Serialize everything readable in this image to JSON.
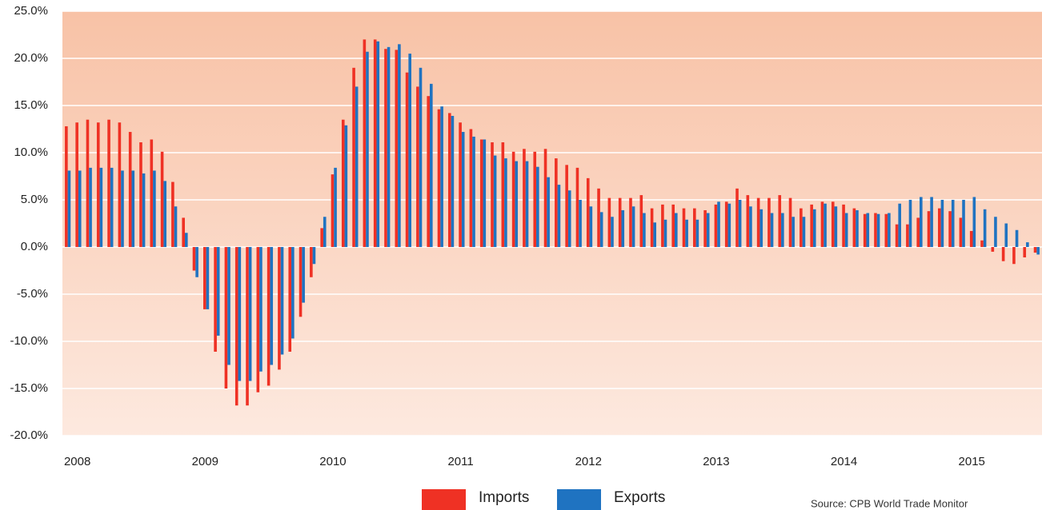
{
  "chart_data": {
    "type": "bar",
    "categories": [
      "2008",
      null,
      null,
      null,
      null,
      null,
      null,
      null,
      null,
      null,
      null,
      null,
      "2009",
      null,
      null,
      null,
      null,
      null,
      null,
      null,
      null,
      null,
      null,
      null,
      "2010",
      null,
      null,
      null,
      null,
      null,
      null,
      null,
      null,
      null,
      null,
      null,
      "2011",
      null,
      null,
      null,
      null,
      null,
      null,
      null,
      null,
      null,
      null,
      null,
      "2012",
      null,
      null,
      null,
      null,
      null,
      null,
      null,
      null,
      null,
      null,
      null,
      "2013",
      null,
      null,
      null,
      null,
      null,
      null,
      null,
      null,
      null,
      null,
      null,
      "2014",
      null,
      null,
      null,
      null,
      null,
      null,
      null,
      null,
      null,
      null,
      null,
      "2015",
      null,
      null,
      null,
      null,
      null,
      null,
      null
    ],
    "series": [
      {
        "name": "Imports",
        "color": "#ef3124",
        "values": [
          12.8,
          13.2,
          13.5,
          13.2,
          13.5,
          13.2,
          12.2,
          11.1,
          11.4,
          10.1,
          6.9,
          3.1,
          -2.5,
          -6.6,
          -11.1,
          -15.0,
          -16.8,
          -16.8,
          -15.4,
          -14.7,
          -13.0,
          -11.1,
          -7.4,
          -3.2,
          2.0,
          7.7,
          13.5,
          19.0,
          22.0,
          22.0,
          21.0,
          20.9,
          18.5,
          17.0,
          16.0,
          14.6,
          14.2,
          13.2,
          12.5,
          11.4,
          11.1,
          11.1,
          10.1,
          10.4,
          10.1,
          10.4,
          9.4,
          8.7,
          8.4,
          7.3,
          6.2,
          5.2,
          5.2,
          5.2,
          5.5,
          4.1,
          4.5,
          4.5,
          4.1,
          4.1,
          3.9,
          4.5,
          4.8,
          6.2,
          5.5,
          5.2,
          5.2,
          5.5,
          5.2,
          4.1,
          4.5,
          4.8,
          4.8,
          4.5,
          4.1,
          3.5,
          3.6,
          3.5,
          2.4,
          2.4,
          3.1,
          3.8,
          4.1,
          3.8,
          3.1,
          1.7,
          0.7,
          -0.5,
          -1.5,
          -1.8,
          -1.1,
          -0.6
        ]
      },
      {
        "name": "Exports",
        "color": "#1f73c1",
        "values": [
          8.1,
          8.1,
          8.4,
          8.4,
          8.4,
          8.1,
          8.1,
          7.8,
          8.1,
          7.0,
          4.3,
          1.5,
          -3.2,
          -6.6,
          -9.4,
          -12.5,
          -14.2,
          -14.2,
          -13.2,
          -12.5,
          -11.4,
          -9.7,
          -5.9,
          -1.8,
          3.2,
          8.4,
          12.9,
          17.0,
          20.7,
          21.8,
          21.2,
          21.5,
          20.5,
          19.0,
          17.3,
          14.9,
          13.9,
          12.2,
          11.7,
          11.4,
          9.7,
          9.4,
          9.1,
          9.1,
          8.5,
          7.4,
          6.6,
          6.0,
          5.0,
          4.3,
          3.7,
          3.2,
          3.9,
          4.3,
          3.6,
          2.6,
          2.9,
          3.6,
          2.9,
          2.9,
          3.6,
          4.8,
          4.6,
          5.0,
          4.3,
          4.0,
          3.6,
          3.6,
          3.2,
          3.2,
          4.0,
          4.6,
          4.3,
          3.6,
          3.9,
          3.6,
          3.5,
          3.6,
          4.6,
          5.0,
          5.3,
          5.3,
          5.0,
          5.0,
          5.0,
          5.3,
          4.0,
          3.2,
          2.5,
          1.8,
          0.5,
          -0.8
        ]
      }
    ],
    "ylim": [
      -20,
      25
    ],
    "yticks": [
      {
        "value": -20,
        "label": "-20.0%"
      },
      {
        "value": -15,
        "label": "-15.0%"
      },
      {
        "value": -10,
        "label": "-10.0%"
      },
      {
        "value": -5,
        "label": "-5.0%"
      },
      {
        "value": 0,
        "label": "0.0%"
      },
      {
        "value": 5,
        "label": "5.0%"
      },
      {
        "value": 10,
        "label": "10.0%"
      },
      {
        "value": 15,
        "label": "15.0%"
      },
      {
        "value": 20,
        "label": "20.0%"
      },
      {
        "value": 25,
        "label": "25.0%"
      }
    ],
    "grid": true,
    "legend": "bottom",
    "source": "Source: CPB World Trade Monitor"
  }
}
